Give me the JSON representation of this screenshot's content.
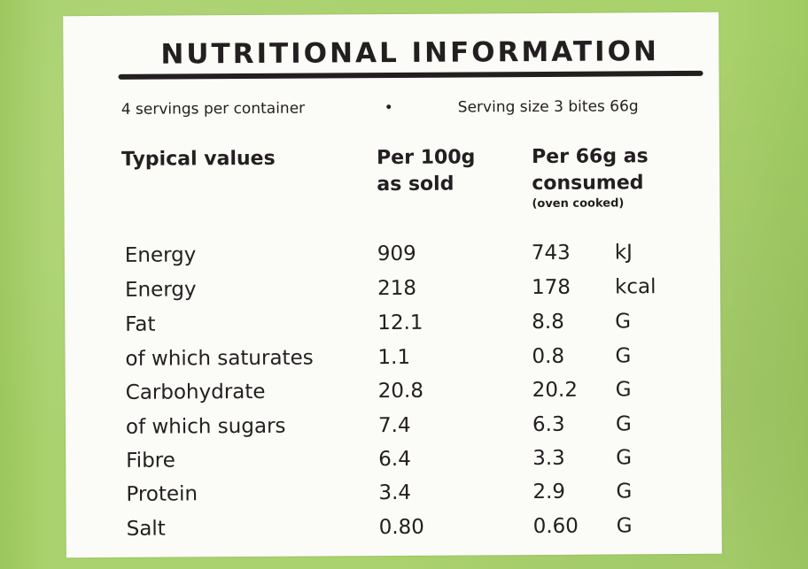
{
  "title": "NUTRITIONAL INFORMATION",
  "servings": {
    "per_container": "4 servings per container",
    "separator": "•",
    "serving_size": "Serving size 3 bites 66g"
  },
  "headers": {
    "typical": "Typical values",
    "per100_line1": "Per 100g",
    "per100_line2": "as sold",
    "per66_line1": "Per 66g as",
    "per66_line2": "consumed",
    "per66_note": "(oven cooked)"
  },
  "rows": [
    {
      "name": "Energy",
      "per100": "909",
      "per66": "743",
      "unit": "kJ"
    },
    {
      "name": "Energy",
      "per100": "218",
      "per66": "178",
      "unit": "kcal"
    },
    {
      "name": "Fat",
      "per100": "12.1",
      "per66": "8.8",
      "unit": "G"
    },
    {
      "name": "of which saturates",
      "per100": "1.1",
      "per66": "0.8",
      "unit": "G"
    },
    {
      "name": "Carbohydrate",
      "per100": "20.8",
      "per66": "20.2",
      "unit": "G"
    },
    {
      "name": "of which sugars",
      "per100": "7.4",
      "per66": "6.3",
      "unit": "G"
    },
    {
      "name": "Fibre",
      "per100": "6.4",
      "per66": "3.3",
      "unit": "G"
    },
    {
      "name": "Protein",
      "per100": "3.4",
      "per66": "2.9",
      "unit": "G"
    },
    {
      "name": "Salt",
      "per100": "0.80",
      "per66": "0.60",
      "unit": "G"
    }
  ]
}
